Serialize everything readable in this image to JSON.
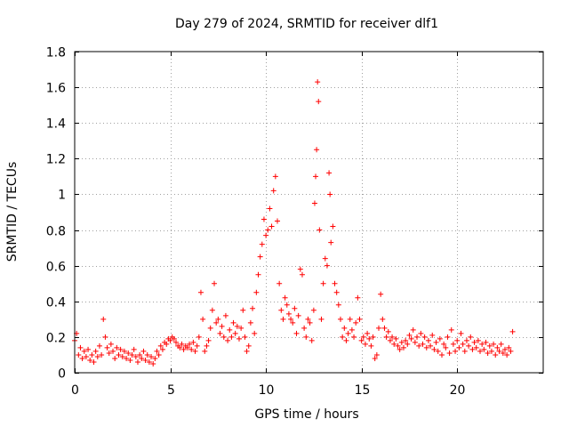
{
  "chart_data": {
    "type": "scatter",
    "title": "Day 279 of 2024, SRMTID for receiver dlf1",
    "xlabel": "GPS time / hours",
    "ylabel": "SRMTID / TECUs",
    "xlim": [
      0,
      24.5
    ],
    "ylim": [
      0,
      1.8
    ],
    "xticks": [
      0,
      5,
      10,
      15,
      20
    ],
    "xtick_labels": [
      "0",
      "5",
      "10",
      "15",
      "20"
    ],
    "yticks": [
      0,
      0.2,
      0.4,
      0.6,
      0.8,
      1,
      1.2,
      1.4,
      1.6,
      1.8
    ],
    "ytick_labels": [
      "0",
      "0.2",
      "0.4",
      "0.6",
      "0.8",
      "1",
      "1.2",
      "1.4",
      "1.6",
      "1.8"
    ],
    "grid": true,
    "marker": "+",
    "marker_color": "#ff0000",
    "series": [
      {
        "name": "SRMTID",
        "points": [
          [
            0.0,
            0.18
          ],
          [
            0.1,
            0.22
          ],
          [
            0.2,
            0.1
          ],
          [
            0.3,
            0.14
          ],
          [
            0.4,
            0.08
          ],
          [
            0.5,
            0.12
          ],
          [
            0.6,
            0.09
          ],
          [
            0.7,
            0.13
          ],
          [
            0.8,
            0.07
          ],
          [
            0.9,
            0.1
          ],
          [
            1.0,
            0.06
          ],
          [
            1.1,
            0.12
          ],
          [
            1.2,
            0.09
          ],
          [
            1.3,
            0.15
          ],
          [
            1.4,
            0.1
          ],
          [
            1.5,
            0.3
          ],
          [
            1.6,
            0.2
          ],
          [
            1.7,
            0.14
          ],
          [
            1.8,
            0.11
          ],
          [
            1.9,
            0.16
          ],
          [
            2.0,
            0.12
          ],
          [
            2.1,
            0.08
          ],
          [
            2.2,
            0.14
          ],
          [
            2.3,
            0.1
          ],
          [
            2.4,
            0.13
          ],
          [
            2.5,
            0.09
          ],
          [
            2.6,
            0.12
          ],
          [
            2.7,
            0.08
          ],
          [
            2.8,
            0.11
          ],
          [
            2.9,
            0.07
          ],
          [
            3.0,
            0.1
          ],
          [
            3.1,
            0.13
          ],
          [
            3.2,
            0.09
          ],
          [
            3.3,
            0.06
          ],
          [
            3.4,
            0.1
          ],
          [
            3.5,
            0.08
          ],
          [
            3.6,
            0.12
          ],
          [
            3.7,
            0.07
          ],
          [
            3.8,
            0.1
          ],
          [
            3.9,
            0.06
          ],
          [
            4.0,
            0.09
          ],
          [
            4.1,
            0.05
          ],
          [
            4.2,
            0.08
          ],
          [
            4.3,
            0.12
          ],
          [
            4.4,
            0.1
          ],
          [
            4.5,
            0.15
          ],
          [
            4.6,
            0.13
          ],
          [
            4.7,
            0.17
          ],
          [
            4.8,
            0.16
          ],
          [
            4.9,
            0.19
          ],
          [
            5.0,
            0.18
          ],
          [
            5.1,
            0.2
          ],
          [
            5.2,
            0.19
          ],
          [
            5.3,
            0.17
          ],
          [
            5.4,
            0.15
          ],
          [
            5.5,
            0.14
          ],
          [
            5.6,
            0.16
          ],
          [
            5.7,
            0.13
          ],
          [
            5.8,
            0.15
          ],
          [
            5.9,
            0.14
          ],
          [
            6.0,
            0.16
          ],
          [
            6.1,
            0.13
          ],
          [
            6.2,
            0.17
          ],
          [
            6.3,
            0.12
          ],
          [
            6.4,
            0.15
          ],
          [
            6.5,
            0.2
          ],
          [
            6.6,
            0.45
          ],
          [
            6.7,
            0.3
          ],
          [
            6.8,
            0.12
          ],
          [
            6.9,
            0.15
          ],
          [
            7.0,
            0.18
          ],
          [
            7.1,
            0.25
          ],
          [
            7.2,
            0.35
          ],
          [
            7.3,
            0.5
          ],
          [
            7.4,
            0.28
          ],
          [
            7.5,
            0.3
          ],
          [
            7.6,
            0.22
          ],
          [
            7.7,
            0.26
          ],
          [
            7.8,
            0.2
          ],
          [
            7.9,
            0.32
          ],
          [
            8.0,
            0.18
          ],
          [
            8.1,
            0.24
          ],
          [
            8.2,
            0.2
          ],
          [
            8.3,
            0.28
          ],
          [
            8.4,
            0.22
          ],
          [
            8.5,
            0.26
          ],
          [
            8.6,
            0.19
          ],
          [
            8.7,
            0.25
          ],
          [
            8.8,
            0.35
          ],
          [
            8.9,
            0.2
          ],
          [
            9.0,
            0.12
          ],
          [
            9.1,
            0.15
          ],
          [
            9.2,
            0.28
          ],
          [
            9.3,
            0.36
          ],
          [
            9.4,
            0.22
          ],
          [
            9.5,
            0.45
          ],
          [
            9.6,
            0.55
          ],
          [
            9.7,
            0.65
          ],
          [
            9.8,
            0.72
          ],
          [
            9.9,
            0.86
          ],
          [
            10.0,
            0.77
          ],
          [
            10.1,
            0.8
          ],
          [
            10.2,
            0.92
          ],
          [
            10.3,
            0.82
          ],
          [
            10.4,
            1.02
          ],
          [
            10.5,
            1.1
          ],
          [
            10.6,
            0.85
          ],
          [
            10.7,
            0.5
          ],
          [
            10.8,
            0.35
          ],
          [
            10.9,
            0.3
          ],
          [
            11.0,
            0.42
          ],
          [
            11.1,
            0.38
          ],
          [
            11.2,
            0.33
          ],
          [
            11.3,
            0.3
          ],
          [
            11.4,
            0.28
          ],
          [
            11.5,
            0.36
          ],
          [
            11.6,
            0.22
          ],
          [
            11.7,
            0.32
          ],
          [
            11.8,
            0.58
          ],
          [
            11.9,
            0.55
          ],
          [
            12.0,
            0.25
          ],
          [
            12.1,
            0.2
          ],
          [
            12.2,
            0.3
          ],
          [
            12.3,
            0.28
          ],
          [
            12.4,
            0.18
          ],
          [
            12.5,
            0.35
          ],
          [
            12.55,
            0.95
          ],
          [
            12.6,
            1.1
          ],
          [
            12.65,
            1.25
          ],
          [
            12.7,
            1.63
          ],
          [
            12.75,
            1.52
          ],
          [
            12.8,
            0.8
          ],
          [
            12.9,
            0.3
          ],
          [
            13.0,
            0.5
          ],
          [
            13.1,
            0.64
          ],
          [
            13.2,
            0.6
          ],
          [
            13.3,
            1.12
          ],
          [
            13.35,
            1.0
          ],
          [
            13.4,
            0.73
          ],
          [
            13.5,
            0.82
          ],
          [
            13.6,
            0.5
          ],
          [
            13.7,
            0.45
          ],
          [
            13.8,
            0.38
          ],
          [
            13.9,
            0.3
          ],
          [
            14.0,
            0.2
          ],
          [
            14.1,
            0.25
          ],
          [
            14.2,
            0.18
          ],
          [
            14.3,
            0.22
          ],
          [
            14.4,
            0.3
          ],
          [
            14.5,
            0.24
          ],
          [
            14.6,
            0.2
          ],
          [
            14.7,
            0.28
          ],
          [
            14.8,
            0.42
          ],
          [
            14.9,
            0.3
          ],
          [
            15.0,
            0.18
          ],
          [
            15.1,
            0.2
          ],
          [
            15.2,
            0.16
          ],
          [
            15.3,
            0.22
          ],
          [
            15.4,
            0.19
          ],
          [
            15.5,
            0.15
          ],
          [
            15.6,
            0.2
          ],
          [
            15.7,
            0.08
          ],
          [
            15.8,
            0.1
          ],
          [
            15.9,
            0.25
          ],
          [
            16.0,
            0.44
          ],
          [
            16.1,
            0.3
          ],
          [
            16.2,
            0.25
          ],
          [
            16.3,
            0.2
          ],
          [
            16.4,
            0.23
          ],
          [
            16.5,
            0.18
          ],
          [
            16.6,
            0.2
          ],
          [
            16.7,
            0.16
          ],
          [
            16.8,
            0.19
          ],
          [
            16.9,
            0.15
          ],
          [
            17.0,
            0.13
          ],
          [
            17.1,
            0.17
          ],
          [
            17.2,
            0.14
          ],
          [
            17.3,
            0.18
          ],
          [
            17.4,
            0.16
          ],
          [
            17.5,
            0.21
          ],
          [
            17.6,
            0.19
          ],
          [
            17.7,
            0.24
          ],
          [
            17.8,
            0.17
          ],
          [
            17.9,
            0.2
          ],
          [
            18.0,
            0.15
          ],
          [
            18.1,
            0.22
          ],
          [
            18.2,
            0.16
          ],
          [
            18.3,
            0.2
          ],
          [
            18.4,
            0.14
          ],
          [
            18.5,
            0.18
          ],
          [
            18.6,
            0.15
          ],
          [
            18.7,
            0.21
          ],
          [
            18.8,
            0.13
          ],
          [
            18.9,
            0.17
          ],
          [
            19.0,
            0.12
          ],
          [
            19.1,
            0.19
          ],
          [
            19.2,
            0.1
          ],
          [
            19.3,
            0.16
          ],
          [
            19.4,
            0.14
          ],
          [
            19.5,
            0.2
          ],
          [
            19.6,
            0.11
          ],
          [
            19.7,
            0.24
          ],
          [
            19.8,
            0.16
          ],
          [
            19.9,
            0.12
          ],
          [
            20.0,
            0.18
          ],
          [
            20.1,
            0.14
          ],
          [
            20.2,
            0.22
          ],
          [
            20.3,
            0.16
          ],
          [
            20.4,
            0.12
          ],
          [
            20.5,
            0.18
          ],
          [
            20.6,
            0.15
          ],
          [
            20.7,
            0.2
          ],
          [
            20.8,
            0.13
          ],
          [
            20.9,
            0.17
          ],
          [
            21.0,
            0.14
          ],
          [
            21.1,
            0.18
          ],
          [
            21.2,
            0.12
          ],
          [
            21.3,
            0.16
          ],
          [
            21.4,
            0.13
          ],
          [
            21.5,
            0.17
          ],
          [
            21.6,
            0.11
          ],
          [
            21.7,
            0.15
          ],
          [
            21.8,
            0.12
          ],
          [
            21.9,
            0.16
          ],
          [
            22.0,
            0.1
          ],
          [
            22.1,
            0.14
          ],
          [
            22.2,
            0.12
          ],
          [
            22.3,
            0.16
          ],
          [
            22.4,
            0.11
          ],
          [
            22.5,
            0.13
          ],
          [
            22.6,
            0.1
          ],
          [
            22.7,
            0.14
          ],
          [
            22.8,
            0.12
          ],
          [
            22.9,
            0.23
          ]
        ]
      }
    ]
  }
}
